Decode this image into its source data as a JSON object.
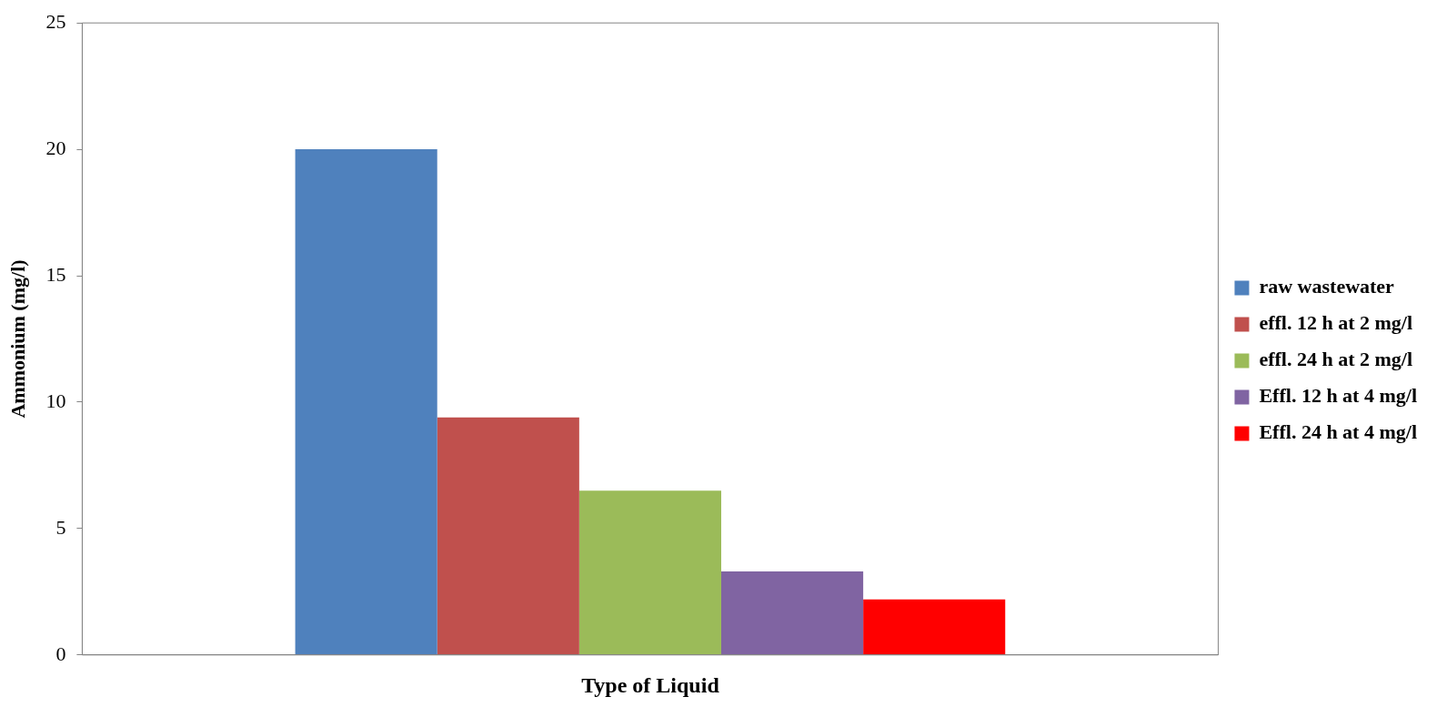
{
  "chart_data": {
    "type": "bar",
    "xlabel": "Type of Liquid",
    "ylabel": "Ammonium (mg/l)",
    "categories": [
      null
    ],
    "series": [
      {
        "name": "raw wastewater",
        "color": "#4f81bd",
        "values": [
          20
        ]
      },
      {
        "name": "effl. 12 h at 2 mg/l",
        "color": "#c0504d",
        "values": [
          9.4
        ]
      },
      {
        "name": "effl. 24 h at 2 mg/l",
        "color": "#9bbb59",
        "values": [
          6.5
        ]
      },
      {
        "name": "Effl. 12 h at 4 mg/l",
        "color": "#8064a2",
        "values": [
          3.3
        ]
      },
      {
        "name": "Effl. 24 h at 4 mg/l",
        "color": "#ff0000",
        "values": [
          2.2
        ]
      }
    ],
    "ylim": [
      0,
      25
    ],
    "yticks": [
      0,
      5,
      10,
      15,
      20,
      25
    ],
    "grid": false,
    "legend": "right"
  }
}
